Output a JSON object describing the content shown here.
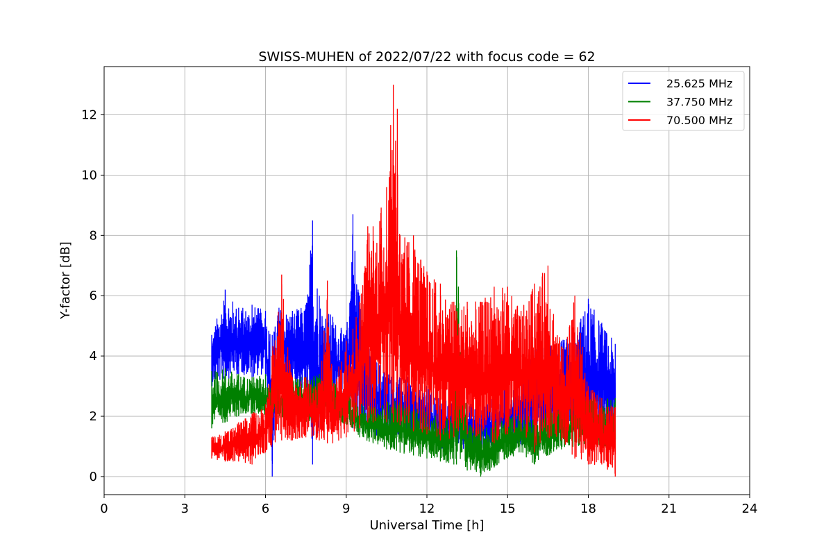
{
  "chart_data": {
    "type": "line",
    "title": "SWISS-MUHEN of 2022/07/22 with focus code = 62",
    "xlabel": "Universal Time [h]",
    "ylabel": "Y-factor [dB]",
    "xlim": [
      0,
      24
    ],
    "ylim": [
      -0.6,
      13.6
    ],
    "xticks": [
      0,
      3,
      6,
      9,
      12,
      15,
      18,
      21,
      24
    ],
    "yticks": [
      0,
      2,
      4,
      6,
      8,
      10,
      12
    ],
    "grid": true,
    "legend_position": "top-right",
    "series": [
      {
        "name": "25.625 MHz",
        "color": "#0000ff",
        "x": [
          4.0,
          4.5,
          5.0,
          5.5,
          6.0,
          6.25,
          6.5,
          7.0,
          7.5,
          7.75,
          8.0,
          8.5,
          9.0,
          9.25,
          9.5,
          10.0,
          10.5,
          11.0,
          11.5,
          12.0,
          12.5,
          13.0,
          13.5,
          14.0,
          14.5,
          15.0,
          15.5,
          16.0,
          16.5,
          17.0,
          17.5,
          18.0,
          18.5,
          19.0
        ],
        "upper": [
          4.7,
          6.2,
          5.6,
          5.7,
          5.5,
          4.7,
          5.6,
          5.5,
          5.7,
          8.5,
          6.0,
          5.3,
          4.7,
          8.7,
          6.0,
          4.0,
          3.6,
          3.3,
          3.3,
          3.0,
          2.6,
          2.5,
          2.4,
          2.5,
          2.6,
          3.0,
          3.5,
          4.2,
          4.5,
          4.5,
          4.8,
          5.9,
          5.1,
          4.4
        ],
        "lower": [
          3.0,
          3.2,
          3.4,
          3.3,
          3.4,
          0.0,
          3.3,
          3.0,
          2.7,
          0.4,
          1.5,
          2.7,
          2.5,
          1.6,
          1.4,
          1.3,
          1.3,
          1.3,
          1.2,
          1.1,
          0.9,
          1.2,
          0.8,
          0.8,
          0.9,
          1.1,
          1.0,
          1.4,
          1.2,
          1.5,
          1.3,
          1.5,
          1.5,
          1.0
        ]
      },
      {
        "name": "37.750 MHz",
        "color": "#008000",
        "x": [
          4.0,
          4.5,
          5.0,
          5.5,
          6.0,
          6.5,
          7.0,
          7.5,
          8.0,
          8.5,
          9.0,
          9.5,
          10.0,
          10.5,
          11.0,
          11.5,
          12.0,
          12.5,
          13.0,
          13.1,
          13.5,
          14.0,
          14.5,
          15.0,
          15.5,
          16.0,
          16.5,
          17.0,
          17.5,
          18.0,
          18.5,
          19.0
        ],
        "upper": [
          3.5,
          3.6,
          3.4,
          3.3,
          3.4,
          3.1,
          3.3,
          3.3,
          3.4,
          3.2,
          3.0,
          2.5,
          2.3,
          2.5,
          2.5,
          2.3,
          2.2,
          2.0,
          2.1,
          7.5,
          1.8,
          1.7,
          1.8,
          2.0,
          2.1,
          2.0,
          2.3,
          2.6,
          2.5,
          2.6,
          2.6,
          2.6
        ],
        "lower": [
          1.6,
          1.8,
          2.0,
          2.1,
          2.0,
          2.0,
          1.9,
          1.8,
          2.0,
          1.9,
          1.7,
          1.3,
          1.1,
          0.9,
          0.8,
          0.7,
          0.6,
          0.5,
          0.4,
          0.4,
          0.2,
          0.0,
          0.3,
          0.6,
          0.8,
          0.4,
          0.7,
          0.9,
          1.0,
          1.1,
          1.0,
          0.9
        ]
      },
      {
        "name": "70.500 MHz",
        "color": "#ff0000",
        "x": [
          4.0,
          4.5,
          5.0,
          5.5,
          6.0,
          6.6,
          7.0,
          7.5,
          8.0,
          8.3,
          8.5,
          9.0,
          9.5,
          9.8,
          10.0,
          10.5,
          10.75,
          10.9,
          11.0,
          11.5,
          12.0,
          12.5,
          13.0,
          13.5,
          14.0,
          14.5,
          15.0,
          15.5,
          16.0,
          16.5,
          17.0,
          17.5,
          18.0,
          18.5,
          19.0
        ],
        "upper": [
          1.3,
          1.5,
          1.8,
          2.1,
          2.4,
          6.7,
          3.3,
          3.3,
          3.1,
          6.5,
          3.0,
          4.5,
          5.8,
          8.3,
          8.3,
          9.6,
          13.0,
          12.2,
          8.0,
          8.0,
          6.8,
          6.4,
          5.8,
          5.8,
          5.8,
          6.3,
          6.3,
          5.5,
          6.4,
          7.0,
          4.3,
          6.0,
          3.0,
          2.6,
          2.3
        ],
        "lower": [
          0.6,
          0.5,
          0.5,
          0.4,
          0.8,
          1.2,
          1.2,
          1.3,
          1.2,
          1.1,
          1.1,
          1.3,
          1.6,
          1.8,
          1.8,
          1.8,
          1.8,
          1.8,
          1.7,
          1.5,
          1.4,
          1.2,
          1.3,
          1.4,
          1.2,
          1.1,
          1.4,
          1.5,
          0.8,
          1.3,
          1.2,
          0.6,
          0.4,
          0.4,
          0.0
        ]
      }
    ]
  }
}
